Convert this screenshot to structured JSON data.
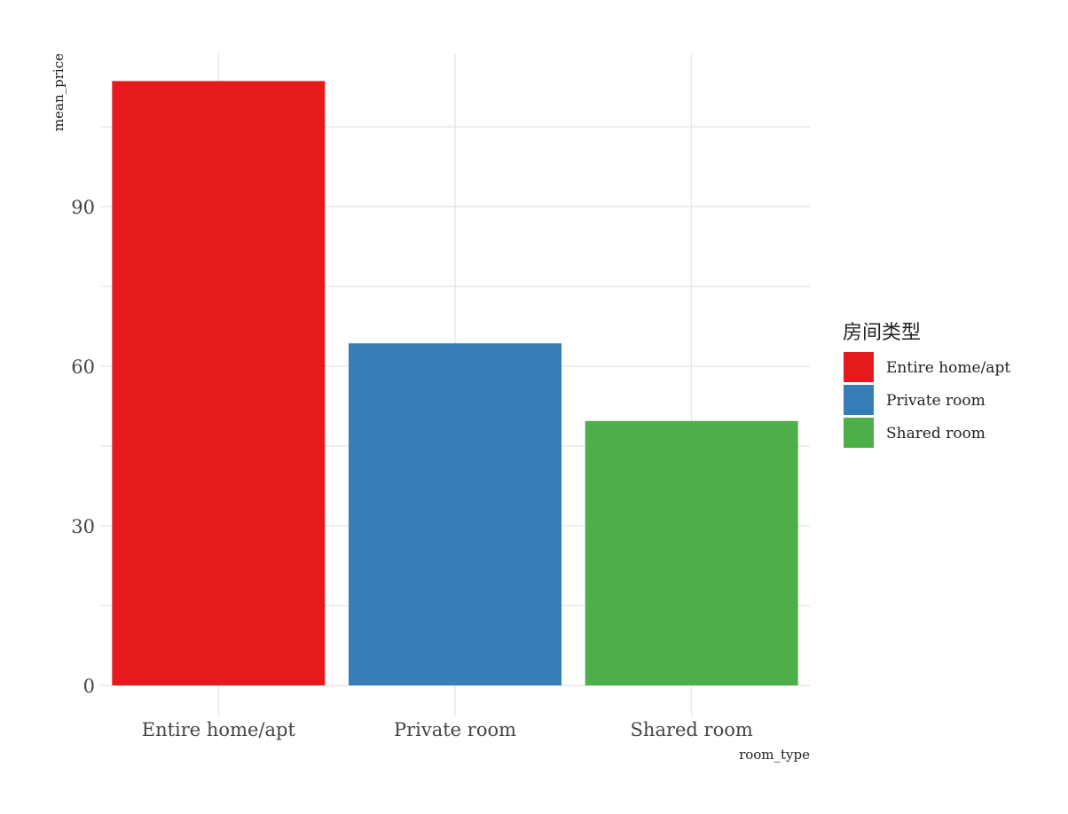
{
  "chart_data": {
    "type": "bar",
    "categories": [
      "Entire home/apt",
      "Private room",
      "Shared room"
    ],
    "values": [
      113.6,
      64.3,
      49.7
    ],
    "colors": [
      "#E41A1C",
      "#377EB8",
      "#4DAF4A"
    ],
    "xlabel": "room_type",
    "ylabel": "mean_price",
    "yticks": [
      0,
      30,
      60,
      90
    ],
    "ylim": [
      0,
      119
    ],
    "grid": true,
    "legend": {
      "title": "房间类型",
      "position": "right",
      "entries": [
        "Entire home/apt",
        "Private room",
        "Shared room"
      ]
    }
  }
}
